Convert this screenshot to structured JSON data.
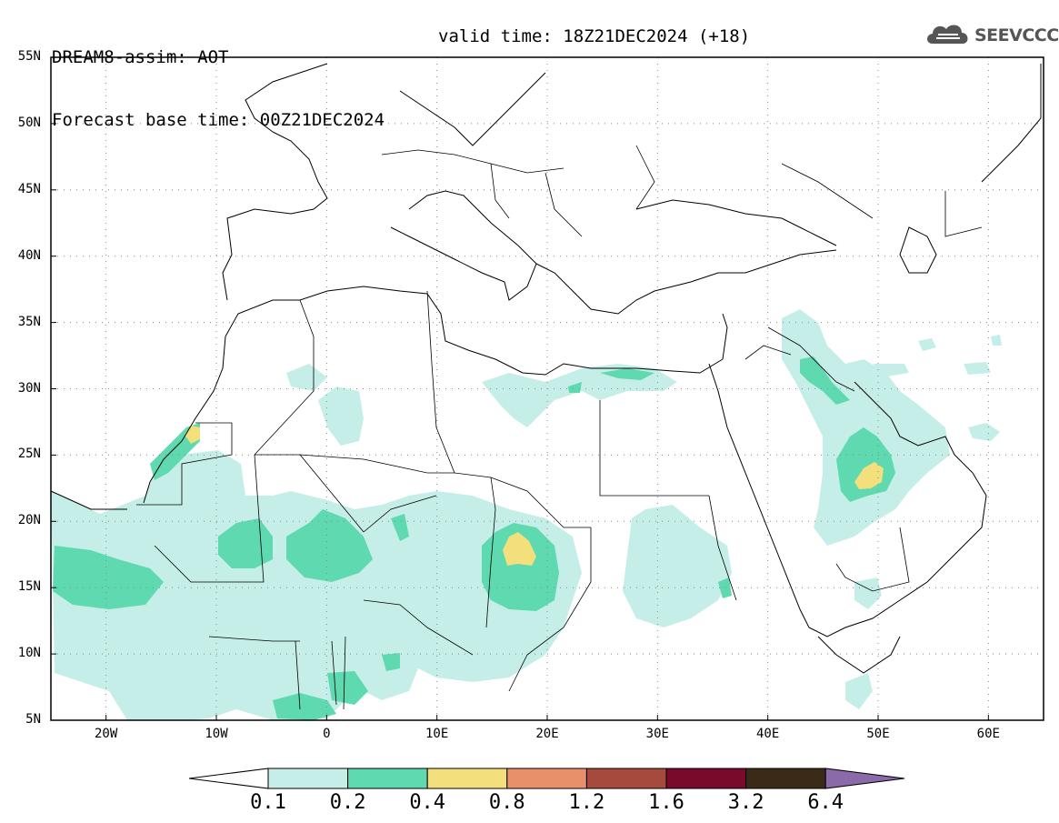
{
  "header": {
    "title": "DREAM8-assim: AOT",
    "base_time": "Forecast base time: 00Z21DEC2024",
    "valid_time": "valid time: 18Z21DEC2024 (+18)"
  },
  "logo": {
    "text": "SEEVCCC",
    "icon": "cloud-icon"
  },
  "map": {
    "lat_labels": [
      "55N",
      "50N",
      "45N",
      "40N",
      "35N",
      "30N",
      "25N",
      "20N",
      "15N",
      "10N",
      "5N"
    ],
    "lon_labels": [
      "20W",
      "10W",
      "0",
      "10E",
      "20E",
      "30E",
      "40E",
      "50E",
      "60E"
    ],
    "lat_range": [
      5,
      55
    ],
    "lon_range": [
      -25,
      65
    ],
    "grid": "dotted"
  },
  "colorbar": {
    "levels": [
      "0.1",
      "0.2",
      "0.4",
      "0.8",
      "1.2",
      "1.6",
      "3.2",
      "6.4"
    ],
    "colors": [
      "#ffffff",
      "#c6eee8",
      "#5ed9b0",
      "#f3e07c",
      "#e8906a",
      "#a64a3e",
      "#7a0a2c",
      "#3b2a18",
      "#8a6aa8"
    ]
  }
}
